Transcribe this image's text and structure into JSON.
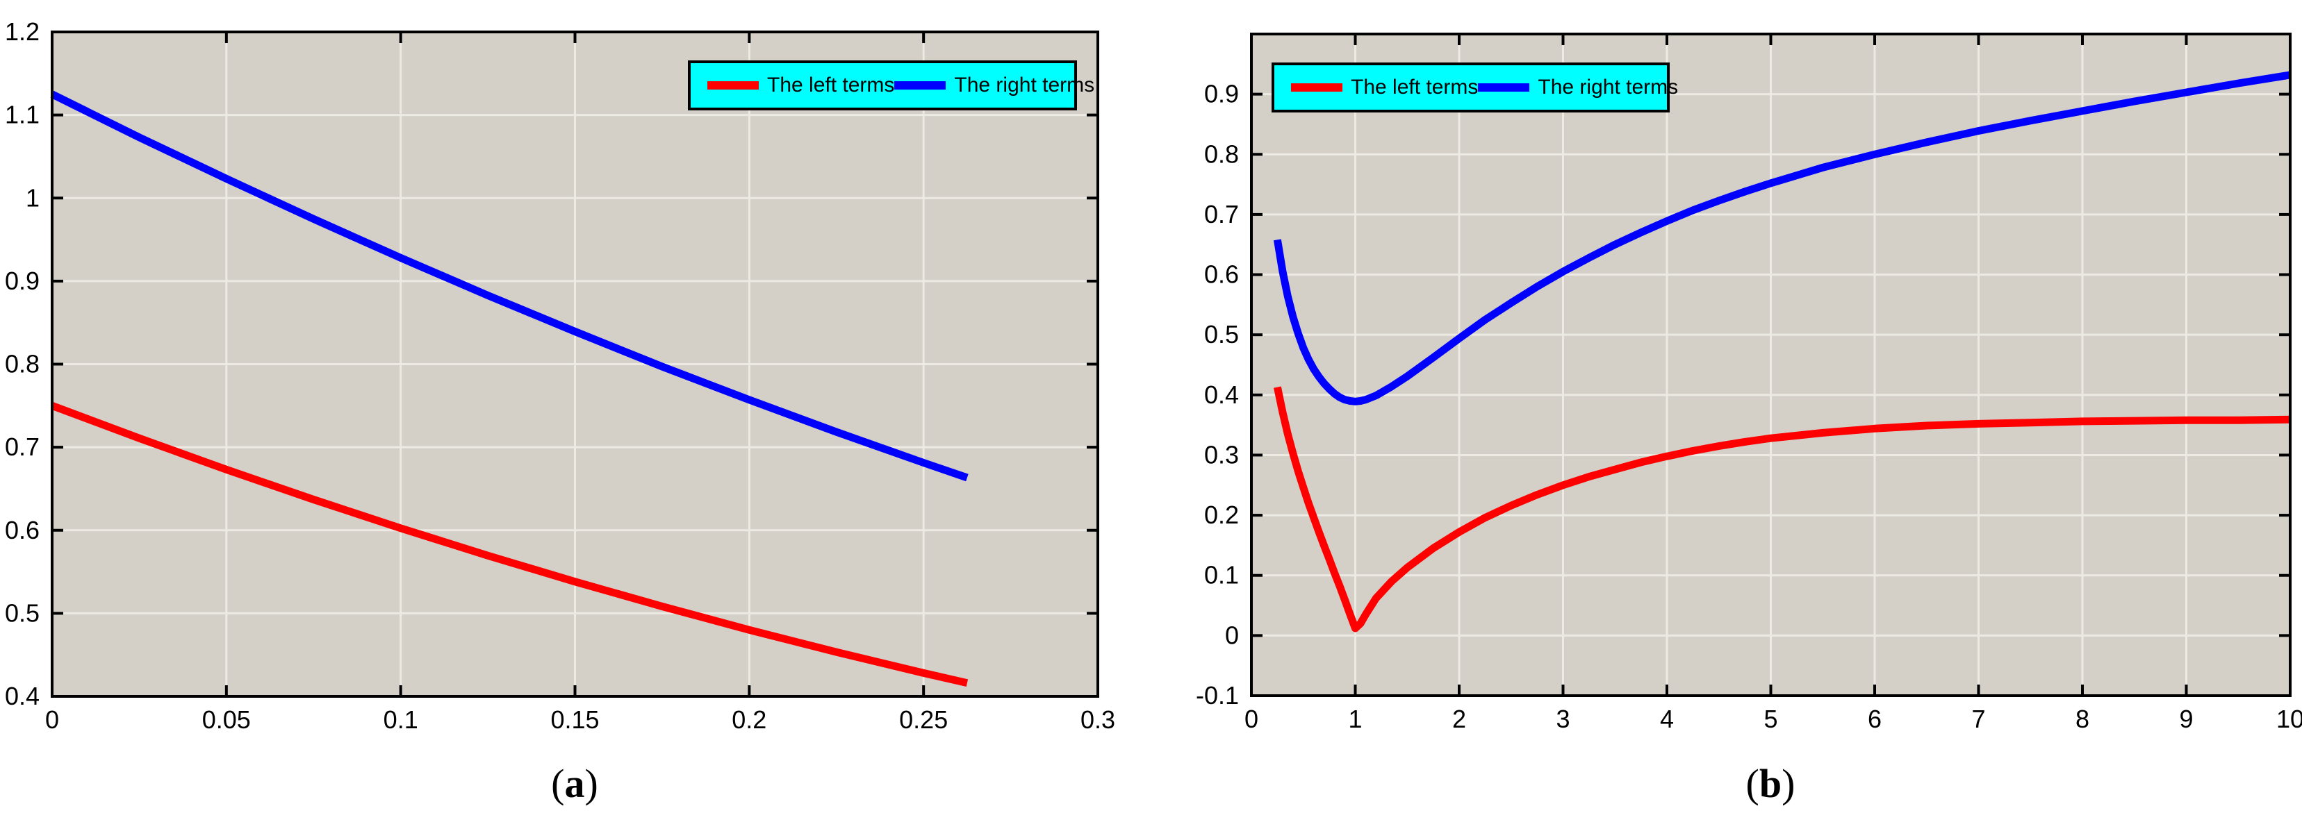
{
  "figure": {
    "background": "#ffffff",
    "text_color": "#000000"
  },
  "colors": {
    "plot_bg": "#d4d0c8",
    "grid": "#eceae3",
    "axis": "#000000",
    "legend_bg": "#00ffff",
    "legend_border": "#000000",
    "left_terms": "#ff0000",
    "right_terms": "#0000ff"
  },
  "legend": {
    "entries": [
      {
        "label": "The left terms",
        "color": "#ff0000"
      },
      {
        "label": "The right terms",
        "color": "#0000ff"
      }
    ]
  },
  "chart_data": [
    {
      "id": "a",
      "type": "line",
      "caption": {
        "open": "(",
        "letter": "a",
        "close": ")"
      },
      "title": "",
      "xlabel": "",
      "ylabel": "",
      "grid": true,
      "legend_position": "top-right",
      "xlim": [
        0,
        0.3
      ],
      "ylim": [
        0.4,
        1.2
      ],
      "xticks": [
        0,
        0.05,
        0.1,
        0.15,
        0.2,
        0.25,
        0.3
      ],
      "xtick_labels": [
        "0",
        "0.05",
        "0.1",
        "0.15",
        "0.2",
        "0.25",
        "0.3"
      ],
      "yticks": [
        0.4,
        0.5,
        0.6,
        0.7,
        0.8,
        0.9,
        1.0,
        1.1,
        1.2
      ],
      "ytick_labels": [
        "0.4",
        "0.5",
        "0.6",
        "0.7",
        "0.8",
        "0.9",
        "1",
        "1.1",
        "1.2"
      ],
      "series": [
        {
          "name": "The left terms",
          "color": "#ff0000",
          "points": [
            [
              0,
              0.75
            ],
            [
              0.025,
              0.7108
            ],
            [
              0.05,
              0.6731
            ],
            [
              0.075,
              0.637
            ],
            [
              0.1,
              0.6025
            ],
            [
              0.125,
              0.5695
            ],
            [
              0.15,
              0.5381
            ],
            [
              0.175,
              0.5083
            ],
            [
              0.2,
              0.48
            ],
            [
              0.225,
              0.4533
            ],
            [
              0.25,
              0.4281
            ],
            [
              0.2625,
              0.4161
            ]
          ]
        },
        {
          "name": "The right terms",
          "color": "#0000ff",
          "points": [
            [
              0,
              1.125
            ],
            [
              0.025,
              1.0731
            ],
            [
              0.05,
              1.0233
            ],
            [
              0.075,
              0.9748
            ],
            [
              0.1,
              0.928
            ],
            [
              0.125,
              0.8828
            ],
            [
              0.15,
              0.8393
            ],
            [
              0.175,
              0.7971
            ],
            [
              0.2,
              0.757
            ],
            [
              0.225,
              0.7183
            ],
            [
              0.25,
              0.6813
            ],
            [
              0.2625,
              0.6633
            ]
          ]
        }
      ]
    },
    {
      "id": "b",
      "type": "line",
      "caption": {
        "open": "(",
        "letter": "b",
        "close": ")"
      },
      "title": "",
      "xlabel": "",
      "ylabel": "",
      "grid": true,
      "legend_position": "top-left",
      "xlim": [
        0,
        10
      ],
      "ylim": [
        -0.1,
        1.0
      ],
      "xticks": [
        0,
        1,
        2,
        3,
        4,
        5,
        6,
        7,
        8,
        9,
        10
      ],
      "xtick_labels": [
        "0",
        "1",
        "2",
        "3",
        "4",
        "5",
        "6",
        "7",
        "8",
        "9",
        "10"
      ],
      "yticks": [
        -0.1,
        0,
        0.1,
        0.2,
        0.3,
        0.4,
        0.5,
        0.6,
        0.7,
        0.8,
        0.9
      ],
      "ytick_labels": [
        "-0.1",
        "0",
        "0.1",
        "0.2",
        "0.3",
        "0.4",
        "0.5",
        "0.6",
        "0.7",
        "0.8",
        "0.9"
      ],
      "series": [
        {
          "name": "The left terms",
          "color": "#ff0000",
          "points": [
            [
              0.25,
              0.413
            ],
            [
              0.3,
              0.372
            ],
            [
              0.35,
              0.335
            ],
            [
              0.4,
              0.303
            ],
            [
              0.45,
              0.273
            ],
            [
              0.5,
              0.246
            ],
            [
              0.55,
              0.22
            ],
            [
              0.6,
              0.196
            ],
            [
              0.65,
              0.172
            ],
            [
              0.7,
              0.149
            ],
            [
              0.75,
              0.127
            ],
            [
              0.8,
              0.104
            ],
            [
              0.85,
              0.082
            ],
            [
              0.9,
              0.059
            ],
            [
              0.95,
              0.035
            ],
            [
              1.0,
              0.012
            ],
            [
              1.05,
              0.02
            ],
            [
              1.1,
              0.035
            ],
            [
              1.2,
              0.062
            ],
            [
              1.35,
              0.09
            ],
            [
              1.5,
              0.113
            ],
            [
              1.75,
              0.145
            ],
            [
              2,
              0.172
            ],
            [
              2.25,
              0.196
            ],
            [
              2.5,
              0.216
            ],
            [
              2.75,
              0.234
            ],
            [
              3,
              0.25
            ],
            [
              3.25,
              0.264
            ],
            [
              3.5,
              0.276
            ],
            [
              3.75,
              0.288
            ],
            [
              4,
              0.298
            ],
            [
              4.25,
              0.307
            ],
            [
              4.5,
              0.315
            ],
            [
              4.75,
              0.322
            ],
            [
              5,
              0.328
            ],
            [
              5.5,
              0.337
            ],
            [
              6,
              0.344
            ],
            [
              6.5,
              0.349
            ],
            [
              7,
              0.352
            ],
            [
              7.5,
              0.354
            ],
            [
              8,
              0.356
            ],
            [
              8.5,
              0.357
            ],
            [
              9,
              0.358
            ],
            [
              9.5,
              0.358
            ],
            [
              10,
              0.359
            ]
          ]
        },
        {
          "name": "The right terms",
          "color": "#0000ff",
          "points": [
            [
              0.25,
              0.658
            ],
            [
              0.3,
              0.606
            ],
            [
              0.35,
              0.564
            ],
            [
              0.4,
              0.53
            ],
            [
              0.45,
              0.502
            ],
            [
              0.5,
              0.478
            ],
            [
              0.55,
              0.459
            ],
            [
              0.6,
              0.443
            ],
            [
              0.65,
              0.43
            ],
            [
              0.7,
              0.419
            ],
            [
              0.75,
              0.41
            ],
            [
              0.8,
              0.402
            ],
            [
              0.85,
              0.396
            ],
            [
              0.9,
              0.392
            ],
            [
              0.95,
              0.39
            ],
            [
              1.0,
              0.389
            ],
            [
              1.05,
              0.39
            ],
            [
              1.1,
              0.392
            ],
            [
              1.2,
              0.399
            ],
            [
              1.35,
              0.414
            ],
            [
              1.5,
              0.431
            ],
            [
              1.75,
              0.462
            ],
            [
              2,
              0.494
            ],
            [
              2.25,
              0.525
            ],
            [
              2.5,
              0.553
            ],
            [
              2.75,
              0.58
            ],
            [
              3,
              0.605
            ],
            [
              3.25,
              0.628
            ],
            [
              3.5,
              0.65
            ],
            [
              3.75,
              0.67
            ],
            [
              4,
              0.689
            ],
            [
              4.25,
              0.707
            ],
            [
              4.5,
              0.723
            ],
            [
              4.75,
              0.738
            ],
            [
              5,
              0.752
            ],
            [
              5.25,
              0.765
            ],
            [
              5.5,
              0.778
            ],
            [
              5.75,
              0.789
            ],
            [
              6,
              0.8
            ],
            [
              6.5,
              0.82
            ],
            [
              7,
              0.839
            ],
            [
              7.5,
              0.856
            ],
            [
              8,
              0.872
            ],
            [
              8.5,
              0.888
            ],
            [
              9,
              0.903
            ],
            [
              9.5,
              0.918
            ],
            [
              10,
              0.932
            ]
          ]
        }
      ]
    }
  ]
}
